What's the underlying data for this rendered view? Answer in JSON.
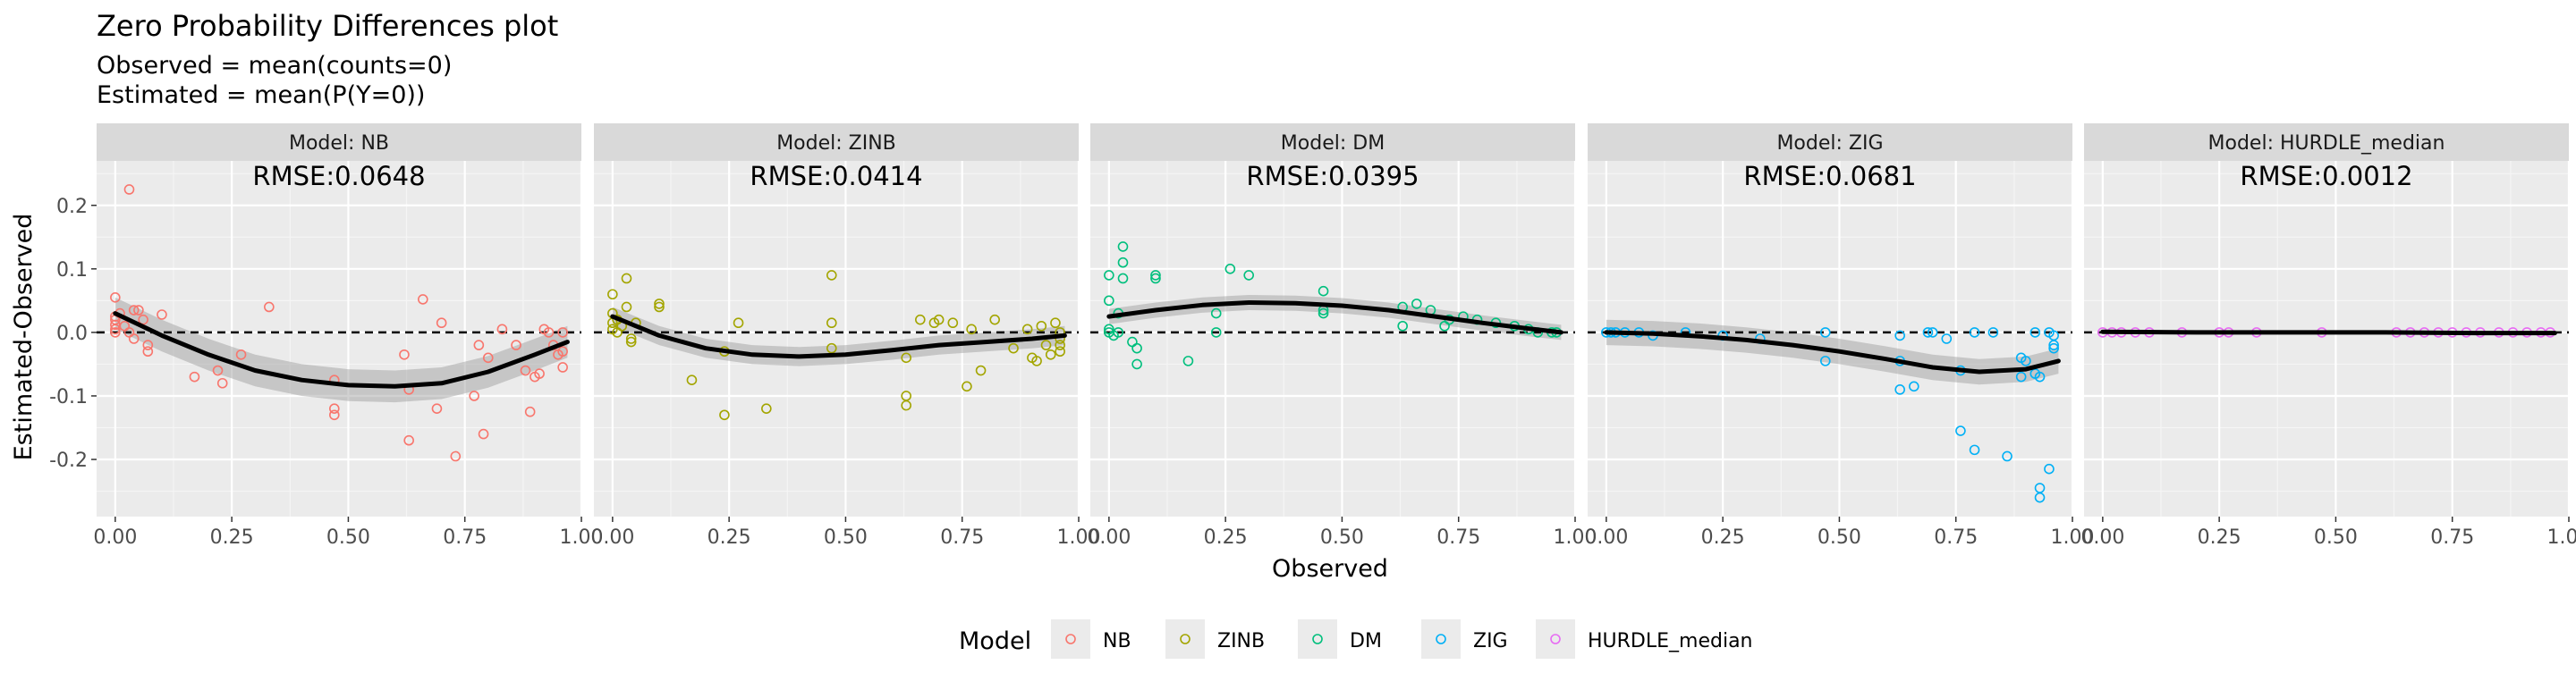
{
  "chart_data": {
    "type": "scatter",
    "title": "Zero Probability Differences plot",
    "subtitle_lines": [
      "Observed = mean(counts=0)",
      "Estimated = mean(P(Y=0))"
    ],
    "xlabel": "Observed",
    "ylabel": "Estimated-Observed",
    "xlim": [
      -0.04,
      1.0
    ],
    "ylim": [
      -0.29,
      0.27
    ],
    "x_ticks": [
      0,
      0.25,
      0.5,
      0.75,
      1.0
    ],
    "x_tick_labels": [
      "0.00",
      "0.25",
      "0.50",
      "0.75",
      "1.00"
    ],
    "y_ticks": [
      -0.2,
      -0.1,
      0.0,
      0.1,
      0.2
    ],
    "y_tick_labels": [
      "-0.2",
      "-0.1",
      "0.0",
      "0.1",
      "0.2"
    ],
    "reference_line": {
      "y": 0,
      "style": "dashed"
    },
    "smooth": "loess with confidence band",
    "grid": true,
    "legend": {
      "title": "Model",
      "position": "bottom",
      "entries": [
        "NB",
        "ZINB",
        "DM",
        "ZIG",
        "HURDLE_median"
      ]
    },
    "colors": {
      "NB": "#F8766D",
      "ZINB": "#A3A500",
      "DM": "#00BF7D",
      "ZIG": "#00B0F6",
      "HURDLE_median": "#E76BF3"
    },
    "panels": [
      {
        "strip": "Model: NB",
        "series": "NB",
        "rmse_label": "RMSE:0.0648",
        "points": [
          [
            0.0,
            0.055
          ],
          [
            0.0,
            0.025
          ],
          [
            0.0,
            0.012
          ],
          [
            0.0,
            0.0
          ],
          [
            0.0,
            0.02
          ],
          [
            0.0,
            0.005
          ],
          [
            0.01,
            0.03
          ],
          [
            0.02,
            0.01
          ],
          [
            0.03,
            0.0
          ],
          [
            0.03,
            0.225
          ],
          [
            0.04,
            0.035
          ],
          [
            0.04,
            -0.01
          ],
          [
            0.05,
            0.035
          ],
          [
            0.06,
            0.02
          ],
          [
            0.07,
            -0.02
          ],
          [
            0.07,
            -0.03
          ],
          [
            0.1,
            0.028
          ],
          [
            0.17,
            -0.07
          ],
          [
            0.22,
            -0.06
          ],
          [
            0.23,
            -0.08
          ],
          [
            0.27,
            -0.035
          ],
          [
            0.33,
            0.04
          ],
          [
            0.47,
            -0.075
          ],
          [
            0.47,
            -0.12
          ],
          [
            0.47,
            -0.13
          ],
          [
            0.62,
            -0.035
          ],
          [
            0.63,
            -0.09
          ],
          [
            0.63,
            -0.17
          ],
          [
            0.66,
            0.052
          ],
          [
            0.69,
            -0.12
          ],
          [
            0.7,
            0.015
          ],
          [
            0.73,
            -0.195
          ],
          [
            0.77,
            -0.1
          ],
          [
            0.78,
            -0.02
          ],
          [
            0.79,
            -0.16
          ],
          [
            0.8,
            -0.04
          ],
          [
            0.83,
            0.005
          ],
          [
            0.86,
            -0.02
          ],
          [
            0.88,
            -0.06
          ],
          [
            0.89,
            -0.125
          ],
          [
            0.9,
            -0.07
          ],
          [
            0.91,
            -0.065
          ],
          [
            0.92,
            0.005
          ],
          [
            0.93,
            0.0
          ],
          [
            0.94,
            -0.02
          ],
          [
            0.95,
            -0.035
          ],
          [
            0.96,
            0.0
          ],
          [
            0.96,
            -0.03
          ],
          [
            0.96,
            -0.055
          ]
        ],
        "smooth": [
          [
            0.0,
            0.03
          ],
          [
            0.1,
            -0.005
          ],
          [
            0.2,
            -0.035
          ],
          [
            0.3,
            -0.06
          ],
          [
            0.4,
            -0.075
          ],
          [
            0.5,
            -0.083
          ],
          [
            0.6,
            -0.085
          ],
          [
            0.7,
            -0.08
          ],
          [
            0.8,
            -0.062
          ],
          [
            0.9,
            -0.035
          ],
          [
            0.97,
            -0.015
          ]
        ],
        "band": 0.025
      },
      {
        "strip": "Model: ZINB",
        "series": "ZINB",
        "rmse_label": "RMSE:0.0414",
        "points": [
          [
            0.0,
            0.06
          ],
          [
            0.0,
            0.03
          ],
          [
            0.0,
            0.015
          ],
          [
            0.0,
            0.005
          ],
          [
            0.01,
            0.0
          ],
          [
            0.01,
            0.02
          ],
          [
            0.02,
            0.01
          ],
          [
            0.03,
            0.085
          ],
          [
            0.03,
            0.04
          ],
          [
            0.04,
            -0.01
          ],
          [
            0.04,
            -0.015
          ],
          [
            0.05,
            0.015
          ],
          [
            0.1,
            0.045
          ],
          [
            0.1,
            0.04
          ],
          [
            0.17,
            -0.075
          ],
          [
            0.24,
            -0.13
          ],
          [
            0.24,
            -0.03
          ],
          [
            0.27,
            0.015
          ],
          [
            0.33,
            -0.12
          ],
          [
            0.47,
            0.09
          ],
          [
            0.47,
            0.015
          ],
          [
            0.47,
            -0.025
          ],
          [
            0.63,
            -0.04
          ],
          [
            0.63,
            -0.1
          ],
          [
            0.63,
            -0.115
          ],
          [
            0.66,
            0.02
          ],
          [
            0.69,
            0.015
          ],
          [
            0.7,
            0.02
          ],
          [
            0.73,
            0.015
          ],
          [
            0.76,
            -0.085
          ],
          [
            0.77,
            0.005
          ],
          [
            0.79,
            -0.06
          ],
          [
            0.82,
            0.02
          ],
          [
            0.86,
            -0.025
          ],
          [
            0.89,
            0.005
          ],
          [
            0.9,
            -0.04
          ],
          [
            0.91,
            -0.045
          ],
          [
            0.92,
            0.01
          ],
          [
            0.93,
            -0.02
          ],
          [
            0.94,
            -0.035
          ],
          [
            0.95,
            0.015
          ],
          [
            0.96,
            0.0
          ],
          [
            0.96,
            -0.01
          ],
          [
            0.96,
            -0.02
          ],
          [
            0.96,
            -0.03
          ]
        ],
        "smooth": [
          [
            0.0,
            0.025
          ],
          [
            0.1,
            -0.005
          ],
          [
            0.2,
            -0.025
          ],
          [
            0.3,
            -0.035
          ],
          [
            0.4,
            -0.038
          ],
          [
            0.5,
            -0.035
          ],
          [
            0.6,
            -0.028
          ],
          [
            0.7,
            -0.02
          ],
          [
            0.8,
            -0.015
          ],
          [
            0.9,
            -0.01
          ],
          [
            0.97,
            -0.005
          ]
        ],
        "band": 0.015
      },
      {
        "strip": "Model: DM",
        "series": "DM",
        "rmse_label": "RMSE:0.0395",
        "points": [
          [
            0.0,
            0.09
          ],
          [
            0.0,
            0.05
          ],
          [
            0.0,
            0.005
          ],
          [
            0.0,
            0.0
          ],
          [
            0.01,
            -0.005
          ],
          [
            0.02,
            0.0
          ],
          [
            0.02,
            0.03
          ],
          [
            0.03,
            0.135
          ],
          [
            0.03,
            0.11
          ],
          [
            0.03,
            0.085
          ],
          [
            0.05,
            -0.015
          ],
          [
            0.06,
            -0.025
          ],
          [
            0.06,
            -0.05
          ],
          [
            0.1,
            0.09
          ],
          [
            0.1,
            0.085
          ],
          [
            0.17,
            -0.045
          ],
          [
            0.23,
            0.0
          ],
          [
            0.23,
            0.03
          ],
          [
            0.26,
            0.1
          ],
          [
            0.3,
            0.09
          ],
          [
            0.46,
            0.065
          ],
          [
            0.46,
            0.035
          ],
          [
            0.46,
            0.03
          ],
          [
            0.63,
            0.04
          ],
          [
            0.63,
            0.01
          ],
          [
            0.66,
            0.045
          ],
          [
            0.69,
            0.035
          ],
          [
            0.72,
            0.01
          ],
          [
            0.73,
            0.02
          ],
          [
            0.76,
            0.025
          ],
          [
            0.79,
            0.02
          ],
          [
            0.83,
            0.015
          ],
          [
            0.87,
            0.01
          ],
          [
            0.9,
            0.005
          ],
          [
            0.92,
            0.0
          ],
          [
            0.95,
            0.0
          ],
          [
            0.96,
            0.0
          ]
        ],
        "smooth": [
          [
            0.0,
            0.025
          ],
          [
            0.1,
            0.035
          ],
          [
            0.2,
            0.043
          ],
          [
            0.3,
            0.047
          ],
          [
            0.4,
            0.046
          ],
          [
            0.5,
            0.042
          ],
          [
            0.6,
            0.035
          ],
          [
            0.7,
            0.025
          ],
          [
            0.8,
            0.015
          ],
          [
            0.9,
            0.006
          ],
          [
            0.97,
            0.0
          ]
        ],
        "band": 0.012
      },
      {
        "strip": "Model: ZIG",
        "series": "ZIG",
        "rmse_label": "RMSE:0.0681",
        "points": [
          [
            0.0,
            0.0
          ],
          [
            0.01,
            0.0
          ],
          [
            0.02,
            0.0
          ],
          [
            0.04,
            0.0
          ],
          [
            0.07,
            0.0
          ],
          [
            0.1,
            -0.005
          ],
          [
            0.17,
            0.0
          ],
          [
            0.25,
            -0.005
          ],
          [
            0.33,
            -0.01
          ],
          [
            0.47,
            0.0
          ],
          [
            0.47,
            -0.045
          ],
          [
            0.63,
            -0.005
          ],
          [
            0.63,
            -0.045
          ],
          [
            0.63,
            -0.09
          ],
          [
            0.66,
            -0.085
          ],
          [
            0.69,
            0.0
          ],
          [
            0.7,
            0.0
          ],
          [
            0.73,
            -0.01
          ],
          [
            0.76,
            -0.155
          ],
          [
            0.76,
            -0.06
          ],
          [
            0.79,
            -0.185
          ],
          [
            0.79,
            0.0
          ],
          [
            0.83,
            0.0
          ],
          [
            0.86,
            -0.195
          ],
          [
            0.89,
            -0.04
          ],
          [
            0.89,
            -0.07
          ],
          [
            0.9,
            -0.045
          ],
          [
            0.92,
            0.0
          ],
          [
            0.92,
            -0.065
          ],
          [
            0.93,
            -0.245
          ],
          [
            0.93,
            -0.26
          ],
          [
            0.93,
            -0.07
          ],
          [
            0.95,
            -0.215
          ],
          [
            0.95,
            0.0
          ],
          [
            0.96,
            -0.005
          ],
          [
            0.96,
            -0.02
          ],
          [
            0.96,
            -0.025
          ]
        ],
        "smooth": [
          [
            0.0,
            0.0
          ],
          [
            0.1,
            -0.002
          ],
          [
            0.2,
            -0.006
          ],
          [
            0.3,
            -0.012
          ],
          [
            0.4,
            -0.02
          ],
          [
            0.5,
            -0.03
          ],
          [
            0.6,
            -0.042
          ],
          [
            0.7,
            -0.055
          ],
          [
            0.8,
            -0.062
          ],
          [
            0.9,
            -0.058
          ],
          [
            0.97,
            -0.045
          ]
        ],
        "band": 0.02
      },
      {
        "strip": "Model: HURDLE_median",
        "series": "HURDLE_median",
        "rmse_label": "RMSE:0.0012",
        "points": [
          [
            0.0,
            0.0
          ],
          [
            0.02,
            0.0
          ],
          [
            0.04,
            0.0
          ],
          [
            0.07,
            0.0
          ],
          [
            0.1,
            0.0
          ],
          [
            0.17,
            0.0
          ],
          [
            0.25,
            0.0
          ],
          [
            0.27,
            0.0
          ],
          [
            0.33,
            0.0
          ],
          [
            0.47,
            0.0
          ],
          [
            0.63,
            0.0
          ],
          [
            0.66,
            0.0
          ],
          [
            0.69,
            0.0
          ],
          [
            0.72,
            0.0
          ],
          [
            0.75,
            0.0
          ],
          [
            0.78,
            0.0
          ],
          [
            0.81,
            0.0
          ],
          [
            0.85,
            0.0
          ],
          [
            0.88,
            0.0
          ],
          [
            0.91,
            0.0
          ],
          [
            0.94,
            0.0
          ],
          [
            0.96,
            0.0
          ]
        ],
        "smooth": [
          [
            0.0,
            0.001
          ],
          [
            0.2,
            0.0
          ],
          [
            0.4,
            0.0
          ],
          [
            0.6,
            0.0
          ],
          [
            0.8,
            -0.001
          ],
          [
            0.97,
            -0.001
          ]
        ],
        "band": 0.002
      }
    ]
  }
}
